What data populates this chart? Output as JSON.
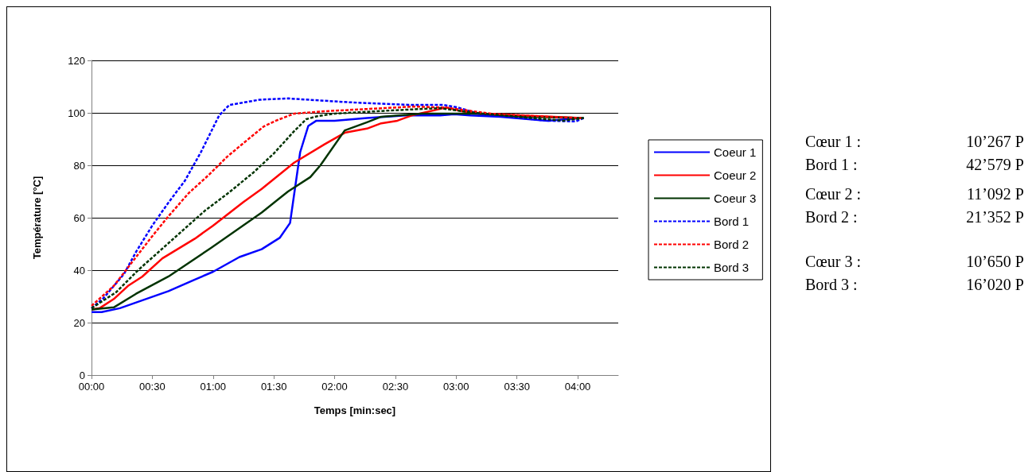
{
  "chart_data": {
    "type": "line",
    "xlabel": "Temps [min:sec]",
    "ylabel": "Température [°C]",
    "xlim": [
      0,
      260
    ],
    "ylim": [
      0,
      120
    ],
    "xticks": [
      {
        "value": 0,
        "label": "00:00"
      },
      {
        "value": 30,
        "label": "00:30"
      },
      {
        "value": 60,
        "label": "01:00"
      },
      {
        "value": 90,
        "label": "01:30"
      },
      {
        "value": 120,
        "label": "02:00"
      },
      {
        "value": 150,
        "label": "02:30"
      },
      {
        "value": 180,
        "label": "03:00"
      },
      {
        "value": 210,
        "label": "03:30"
      },
      {
        "value": 240,
        "label": "04:00"
      }
    ],
    "yticks": [
      0,
      20,
      40,
      60,
      80,
      100,
      120
    ],
    "grid": "y",
    "legend": "right",
    "marker": "none",
    "series": [
      {
        "name": "Coeur 1",
        "color": "#0000ff",
        "line_style": "solid",
        "x": [
          0,
          5,
          14,
          38,
          51,
          60,
          73,
          84,
          93,
          98,
          103,
          107,
          111,
          120,
          136,
          155,
          172,
          179,
          187,
          202,
          225,
          242
        ],
        "values": [
          24,
          24,
          25.5,
          32,
          36.4,
          39.4,
          45,
          48,
          52.4,
          58,
          85,
          95,
          97,
          97,
          98,
          99,
          99,
          99.5,
          99,
          98.5,
          97,
          98
        ]
      },
      {
        "name": "Coeur 2",
        "color": "#ff0000",
        "line_style": "solid",
        "x": [
          0,
          4,
          11,
          18,
          25,
          35,
          51,
          60,
          75,
          84,
          100,
          115,
          125,
          136,
          143,
          151,
          158,
          175,
          183,
          191,
          242
        ],
        "values": [
          25,
          25.5,
          29,
          34,
          37.5,
          44.5,
          52,
          57,
          66,
          71,
          81,
          88,
          92.4,
          94,
          96,
          97,
          99,
          102,
          100.6,
          99.7,
          98
        ]
      },
      {
        "name": "Coeur 3",
        "color": "#003300",
        "line_style": "solid",
        "x": [
          0,
          11,
          22,
          38,
          59,
          84,
          97,
          108,
          113,
          125,
          136,
          143,
          163,
          189,
          215,
          243
        ],
        "values": [
          25,
          25.8,
          31,
          37.6,
          48.5,
          62,
          70,
          75.5,
          80,
          93.3,
          96.4,
          98.5,
          99.7,
          99.7,
          98.5,
          98
        ]
      },
      {
        "name": "Bord 1",
        "color": "#0000ff",
        "line_style": "dashed",
        "x": [
          0,
          6,
          16,
          22,
          30,
          38,
          46,
          54,
          63,
          68,
          83,
          97,
          128,
          158,
          174,
          181,
          191,
          225,
          239,
          243
        ],
        "values": [
          25.5,
          29.4,
          38.5,
          47,
          57,
          65.8,
          74,
          85,
          99,
          103,
          105,
          105.5,
          104,
          103,
          103,
          102,
          99.7,
          97,
          96.7,
          98
        ]
      },
      {
        "name": "Bord 2",
        "color": "#ff0000",
        "line_style": "dashed",
        "x": [
          0,
          11,
          20,
          29,
          38,
          48,
          58,
          67,
          79,
          85,
          91,
          100,
          115,
          137,
          159,
          175,
          197,
          226,
          242
        ],
        "values": [
          26.4,
          34,
          43,
          52,
          60.6,
          69.4,
          76.4,
          83.3,
          91,
          94.8,
          97,
          99.7,
          100.6,
          101.5,
          102.4,
          102,
          99.7,
          98.5,
          98
        ]
      },
      {
        "name": "Bord 3",
        "color": "#003300",
        "line_style": "dashed",
        "x": [
          0,
          12,
          23,
          39,
          56,
          68,
          80,
          90,
          100,
          106,
          112,
          120,
          150,
          172,
          189,
          217,
          233,
          243
        ],
        "values": [
          25.5,
          31.5,
          40,
          51,
          62.7,
          69.7,
          77.3,
          84.5,
          93,
          97.6,
          98.8,
          99.7,
          101,
          101.8,
          100,
          98,
          97,
          98
        ]
      }
    ],
    "annotations": [
      "Cœur 1 : 10’267 P",
      "Bord 1 : 42’579 P",
      "Cœur 2 : 11’092 P",
      "Bord 2 : 21’352 P",
      "Cœur 3 : 10’650 P",
      "Bord 3 : 16’020 P"
    ]
  }
}
